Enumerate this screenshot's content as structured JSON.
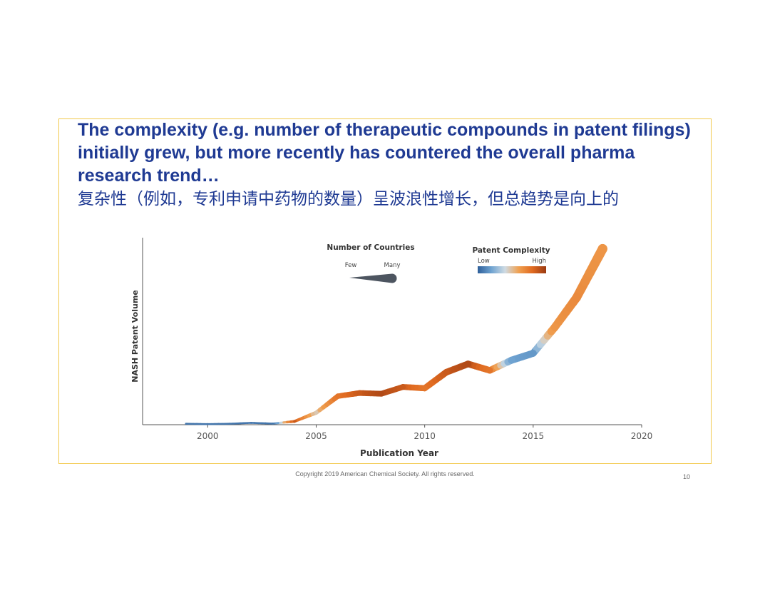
{
  "slide": {
    "title_en": "The complexity (e.g. number of therapeutic compounds in patent filings) initially grew, but more recently has countered the overall pharma research trend…",
    "title_zh": "复杂性（例如，专利申请中药物的数量）呈波浪性增长，但总趋势是向上的",
    "copyright": "Copyright 2019 American Chemical Society. All rights reserved.",
    "page_number": "10",
    "frame_color": "#f2c94c",
    "title_color": "#1f3a93"
  },
  "chart_data": {
    "type": "line",
    "title": "",
    "xlabel": "Publication Year",
    "ylabel": "NASH Patent Volume",
    "xlim": [
      1997,
      2020
    ],
    "ylim": [
      0,
      100
    ],
    "xticks": [
      "2000",
      "2005",
      "2010",
      "2015",
      "2020"
    ],
    "x": [
      1999,
      2000,
      2001,
      2002,
      2003,
      2004,
      2005,
      2006,
      2007,
      2008,
      2009,
      2010,
      2011,
      2012,
      2013,
      2014,
      2015,
      2016,
      2017,
      2018.2
    ],
    "series": [
      {
        "values": [
          0.5,
          0.3,
          0.5,
          1.0,
          0.6,
          1.8,
          6.5,
          15.5,
          17.2,
          16.8,
          20.5,
          19.8,
          28.5,
          33.0,
          29.5,
          35.0,
          38.8,
          53.0,
          69.0,
          95.5
        ],
        "complexity": [
          0.1,
          0.1,
          0.1,
          0.1,
          0.1,
          0.9,
          0.5,
          0.8,
          0.9,
          0.95,
          0.9,
          0.8,
          0.9,
          0.95,
          0.8,
          0.3,
          0.25,
          0.65,
          0.7,
          0.65
        ],
        "countries": [
          0.05,
          0.05,
          0.05,
          0.05,
          0.05,
          0.15,
          0.3,
          0.45,
          0.5,
          0.5,
          0.5,
          0.55,
          0.6,
          0.6,
          0.6,
          0.65,
          0.65,
          0.75,
          0.85,
          0.95
        ]
      }
    ],
    "size_legend": {
      "title": "Number of Countries",
      "few_label": "Few",
      "many_label": "Many",
      "color": "#4d5560"
    },
    "color_legend": {
      "title": "Patent Complexity",
      "low_label": "Low",
      "high_label": "High",
      "colors": [
        "#2e5f9a",
        "#6fa3d1",
        "#cfdbe3",
        "#f0a050",
        "#e06a20",
        "#9a3a12"
      ]
    },
    "grid": false
  }
}
